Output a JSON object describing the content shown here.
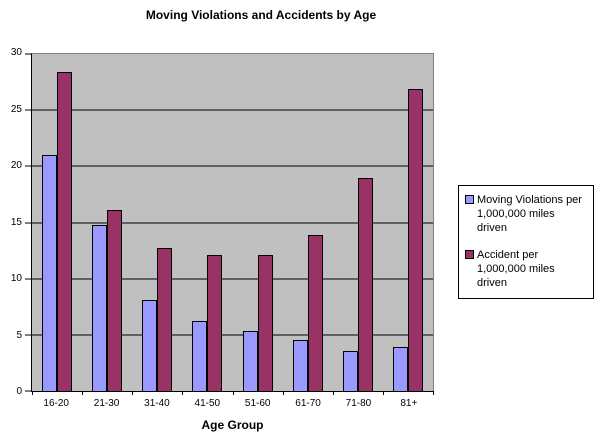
{
  "chart_data": {
    "type": "bar",
    "title": "Moving Violations and Accidents by Age",
    "xlabel": "Age Group",
    "ylabel": "",
    "ylim": [
      0,
      30
    ],
    "yticks": [
      0,
      5,
      10,
      15,
      20,
      25,
      30
    ],
    "grid": true,
    "plot_background": "#c0c0c0",
    "legend_position": "right",
    "categories": [
      "16-20",
      "21-30",
      "31-40",
      "41-50",
      "51-60",
      "61-70",
      "71-80",
      "81+"
    ],
    "series": [
      {
        "name": "Moving Violations per 1,000,000 miles driven",
        "color": "#9999ff",
        "values": [
          21,
          14.8,
          8.1,
          6.2,
          5.3,
          4.5,
          3.6,
          3.9
        ]
      },
      {
        "name": "Accident per 1,000,000 miles driven",
        "color": "#993366",
        "values": [
          28.4,
          16.1,
          12.7,
          12.1,
          12.1,
          13.9,
          19,
          26.9
        ]
      }
    ]
  },
  "legend": {
    "items": [
      {
        "label": "Moving Violations per 1,000,000 miles driven",
        "color": "#9999ff"
      },
      {
        "label": "Accident per 1,000,000 miles driven",
        "color": "#993366"
      }
    ]
  },
  "colors": {
    "series1": "#9999ff",
    "series2": "#993366",
    "plot_bg": "#c0c0c0",
    "gridline": "#000000",
    "plot_border": "#808080"
  }
}
